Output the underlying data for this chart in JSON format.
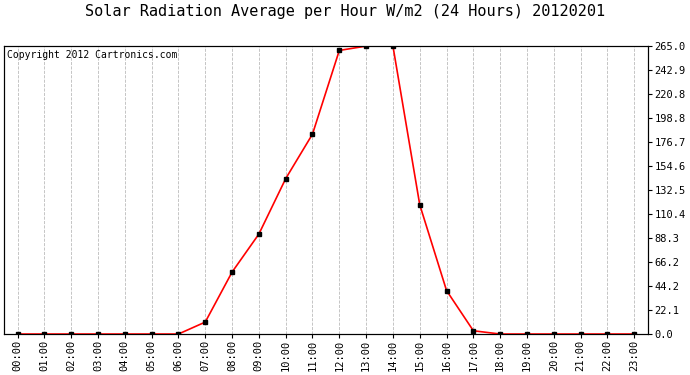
{
  "title": "Solar Radiation Average per Hour W/m2 (24 Hours) 20120201",
  "copyright_text": "Copyright 2012 Cartronics.com",
  "hours": [
    "00:00",
    "01:00",
    "02:00",
    "03:00",
    "04:00",
    "05:00",
    "06:00",
    "07:00",
    "08:00",
    "09:00",
    "10:00",
    "11:00",
    "12:00",
    "13:00",
    "14:00",
    "15:00",
    "16:00",
    "17:00",
    "18:00",
    "19:00",
    "20:00",
    "21:00",
    "22:00",
    "23:00"
  ],
  "values": [
    0.0,
    0.0,
    0.0,
    0.0,
    0.0,
    0.0,
    0.0,
    11.0,
    57.0,
    92.0,
    143.0,
    184.0,
    261.0,
    265.0,
    265.0,
    119.0,
    40.0,
    3.0,
    0.0,
    0.0,
    0.0,
    0.0,
    0.0,
    0.0
  ],
  "line_color": "red",
  "marker": "s",
  "marker_color": "black",
  "marker_size": 3,
  "grid_color": "#bbbbbb",
  "grid_style": "--",
  "bg_color": "white",
  "plot_bg_color": "white",
  "y_max": 265.0,
  "y_min": 0.0,
  "y_ticks": [
    0.0,
    22.1,
    44.2,
    66.2,
    88.3,
    110.4,
    132.5,
    154.6,
    176.7,
    198.8,
    220.8,
    242.9,
    265.0
  ],
  "title_fontsize": 11,
  "copyright_fontsize": 7,
  "tick_label_fontsize": 7.5,
  "border_color": "black"
}
